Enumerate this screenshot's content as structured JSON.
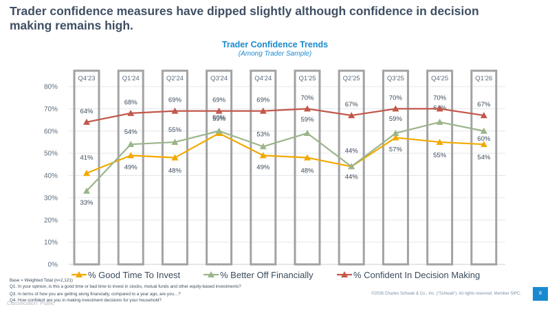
{
  "headline": "Trader confidence measures have dipped slightly although confidence in decision making remains high.",
  "chart_data": {
    "type": "line",
    "title": "Trader Confidence Trends",
    "subtitle": "(Among Trader Sample)",
    "categories": [
      "Q4'23",
      "Q1'24",
      "Q2'24",
      "Q3'24",
      "Q4'24",
      "Q1'25",
      "Q2'25",
      "Q3'25",
      "Q4'25",
      "Q1'26"
    ],
    "ylim": [
      0,
      80
    ],
    "yticks": [
      "0%",
      "10%",
      "20%",
      "30%",
      "40%",
      "50%",
      "60%",
      "70%",
      "80%"
    ],
    "grid": true,
    "legend_position": "bottom",
    "series": [
      {
        "name": "% Good Time To Invest",
        "color": "#f2a900",
        "marker": "triangle",
        "values": [
          41,
          49,
          48,
          59,
          49,
          48,
          44,
          57,
          55,
          54
        ],
        "labels": [
          "41%",
          "49%",
          "48%",
          "59%",
          "49%",
          "48%",
          "44%",
          "57%",
          "55%",
          "54%"
        ]
      },
      {
        "name": "% Better Off Financially",
        "color": "#9cb48a",
        "marker": "triangle",
        "values": [
          33,
          54,
          55,
          60,
          53,
          59,
          44,
          59,
          64,
          60
        ],
        "labels": [
          "33%",
          "54%",
          "55%",
          "60%",
          "53%",
          "59%",
          "44%",
          "59%",
          "64%",
          "60%"
        ]
      },
      {
        "name": "% Confident In Decision Making",
        "color": "#c2574a",
        "marker": "triangle",
        "values": [
          64,
          68,
          69,
          69,
          69,
          70,
          67,
          70,
          70,
          67
        ],
        "labels": [
          "64%",
          "68%",
          "69%",
          "69%",
          "69%",
          "70%",
          "67%",
          "70%",
          "70%",
          "67%"
        ]
      }
    ]
  },
  "footnotes": {
    "base": "Base = Weighted Total (n=2,121)",
    "q1": "Q1. In your opinion, is this a good time or bad time to invest in stocks, mutual funds and other equity-based investments?",
    "q3": "Q3. In terms of how you are getting along financially, compared to a year ago, are you…?",
    "q4": "Q4. How confident are you in making investment decisions for your household?"
  },
  "copyright": "©2026 Charles Schwab & Co., Inc. (\"Schwab\"). All rights reserved. Member SIPC.",
  "page_number": "8",
  "classification": "Classification: Public"
}
